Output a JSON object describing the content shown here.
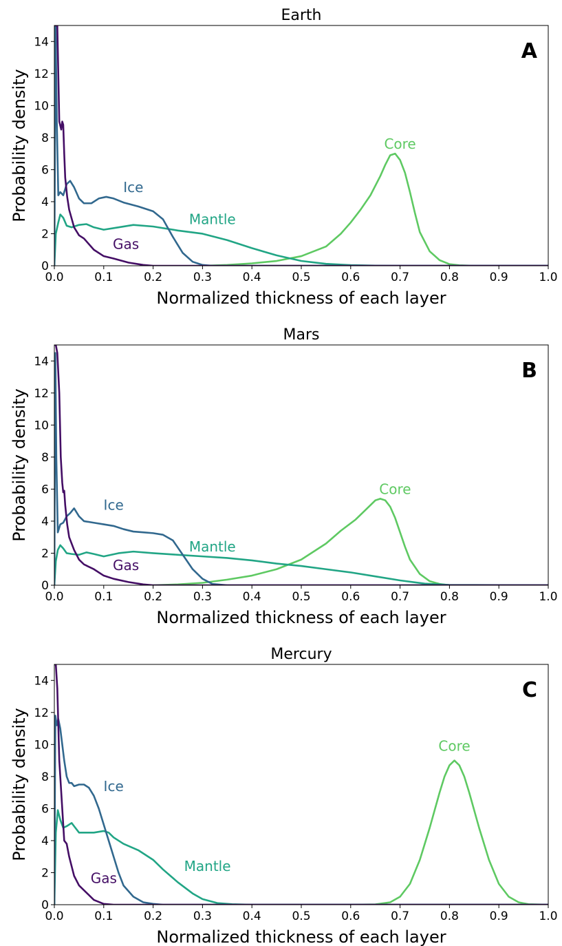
{
  "colors": {
    "core": "#5ec962",
    "mantle": "#21a585",
    "ice": "#31688e",
    "gas": "#440e65",
    "axis": "#000000"
  },
  "chart_data": [
    {
      "type": "line",
      "title": "Earth",
      "panel_label": "A",
      "xlabel": "Normalized thickness of each layer",
      "ylabel": "Probability density",
      "xlim": [
        0,
        1.0
      ],
      "ylim": [
        0,
        15
      ],
      "xticks": [
        "0.0",
        "0.1",
        "0.2",
        "0.3",
        "0.4",
        "0.5",
        "0.6",
        "0.7",
        "0.8",
        "0.9",
        "1.0"
      ],
      "yticks": [
        "0",
        "2",
        "4",
        "6",
        "8",
        "10",
        "12",
        "14"
      ],
      "grid": false,
      "legend": "none (inline curve labels)",
      "series": [
        {
          "name": "Core",
          "color_key": "core",
          "x": [
            0.3,
            0.35,
            0.4,
            0.45,
            0.5,
            0.55,
            0.58,
            0.6,
            0.62,
            0.64,
            0.66,
            0.67,
            0.68,
            0.69,
            0.7,
            0.71,
            0.72,
            0.73,
            0.74,
            0.76,
            0.78,
            0.8,
            0.82,
            0.85,
            1.0
          ],
          "y": [
            0,
            0.05,
            0.15,
            0.3,
            0.6,
            1.2,
            2.0,
            2.7,
            3.5,
            4.4,
            5.6,
            6.3,
            6.9,
            7.0,
            6.6,
            5.8,
            4.6,
            3.3,
            2.1,
            0.9,
            0.35,
            0.1,
            0.03,
            0,
            0
          ]
        },
        {
          "name": "Mantle",
          "color_key": "mantle",
          "x": [
            0,
            0.003,
            0.008,
            0.012,
            0.018,
            0.025,
            0.035,
            0.05,
            0.065,
            0.08,
            0.1,
            0.13,
            0.16,
            0.2,
            0.25,
            0.3,
            0.35,
            0.4,
            0.45,
            0.5,
            0.55,
            0.6,
            0.65,
            0.7,
            1.0
          ],
          "y": [
            0,
            2.0,
            2.7,
            3.2,
            3.0,
            2.5,
            2.4,
            2.55,
            2.6,
            2.4,
            2.25,
            2.4,
            2.55,
            2.45,
            2.2,
            2.0,
            1.6,
            1.1,
            0.65,
            0.3,
            0.12,
            0.04,
            0.01,
            0,
            0
          ]
        },
        {
          "name": "Ice",
          "color_key": "ice",
          "x": [
            0,
            0.0025,
            0.005,
            0.008,
            0.012,
            0.018,
            0.025,
            0.032,
            0.04,
            0.05,
            0.06,
            0.075,
            0.09,
            0.105,
            0.12,
            0.14,
            0.17,
            0.2,
            0.22,
            0.24,
            0.26,
            0.28,
            0.3,
            0.32,
            0.35,
            1.0
          ],
          "y": [
            0,
            15,
            9,
            4.4,
            4.6,
            4.4,
            5.1,
            5.3,
            4.9,
            4.2,
            3.9,
            3.9,
            4.2,
            4.3,
            4.2,
            3.95,
            3.7,
            3.4,
            2.9,
            1.8,
            0.8,
            0.25,
            0.05,
            0,
            0,
            0
          ]
        },
        {
          "name": "Gas",
          "color_key": "gas",
          "x": [
            0,
            0.003,
            0.006,
            0.01,
            0.014,
            0.016,
            0.018,
            0.02,
            0.022,
            0.026,
            0.03,
            0.04,
            0.05,
            0.06,
            0.08,
            0.1,
            0.12,
            0.15,
            0.18,
            0.2,
            1.0
          ],
          "y": [
            15,
            15,
            15,
            9,
            8.5,
            9.0,
            8.8,
            7,
            5.5,
            4.3,
            3.5,
            2.4,
            1.9,
            1.7,
            1.0,
            0.6,
            0.45,
            0.2,
            0.05,
            0,
            0
          ]
        }
      ],
      "annotations": [
        {
          "text": "Core",
          "x": 0.7,
          "y": 7.3,
          "color_key": "core"
        },
        {
          "text": "Ice",
          "x": 0.16,
          "y": 4.6,
          "color_key": "ice"
        },
        {
          "text": "Mantle",
          "x": 0.32,
          "y": 2.6,
          "color_key": "mantle"
        },
        {
          "text": "Gas",
          "x": 0.145,
          "y": 1.05,
          "color_key": "gas"
        }
      ]
    },
    {
      "type": "line",
      "title": "Mars",
      "panel_label": "B",
      "xlabel": "Normalized thickness of each layer",
      "ylabel": "Probability density",
      "xlim": [
        0,
        1.0
      ],
      "ylim": [
        0,
        15
      ],
      "xticks": [
        "0.0",
        "0.1",
        "0.2",
        "0.3",
        "0.4",
        "0.5",
        "0.6",
        "0.7",
        "0.8",
        "0.9",
        "1.0"
      ],
      "yticks": [
        "0",
        "2",
        "4",
        "6",
        "8",
        "10",
        "12",
        "14"
      ],
      "grid": false,
      "legend": "none (inline curve labels)",
      "series": [
        {
          "name": "Core",
          "color_key": "core",
          "x": [
            0.2,
            0.25,
            0.3,
            0.35,
            0.4,
            0.45,
            0.5,
            0.55,
            0.58,
            0.61,
            0.63,
            0.65,
            0.66,
            0.67,
            0.68,
            0.69,
            0.7,
            0.71,
            0.72,
            0.74,
            0.76,
            0.78,
            0.8,
            1.0
          ],
          "y": [
            0,
            0.05,
            0.15,
            0.35,
            0.6,
            1.0,
            1.6,
            2.6,
            3.4,
            4.1,
            4.7,
            5.3,
            5.4,
            5.3,
            4.9,
            4.2,
            3.3,
            2.4,
            1.6,
            0.7,
            0.25,
            0.08,
            0,
            0
          ]
        },
        {
          "name": "Mantle",
          "color_key": "mantle",
          "x": [
            0,
            0.003,
            0.007,
            0.012,
            0.018,
            0.025,
            0.035,
            0.05,
            0.065,
            0.08,
            0.1,
            0.13,
            0.16,
            0.2,
            0.25,
            0.3,
            0.35,
            0.4,
            0.45,
            0.5,
            0.55,
            0.6,
            0.65,
            0.7,
            0.75,
            0.8,
            1.0
          ],
          "y": [
            0,
            1.5,
            2.2,
            2.5,
            2.3,
            2.0,
            1.95,
            1.9,
            2.05,
            1.95,
            1.8,
            2.0,
            2.1,
            2.0,
            1.9,
            1.8,
            1.7,
            1.55,
            1.35,
            1.2,
            1.0,
            0.8,
            0.55,
            0.3,
            0.1,
            0.02,
            0
          ]
        },
        {
          "name": "Ice",
          "color_key": "ice",
          "x": [
            0,
            0.002,
            0.004,
            0.007,
            0.012,
            0.018,
            0.025,
            0.032,
            0.04,
            0.05,
            0.06,
            0.08,
            0.1,
            0.12,
            0.14,
            0.16,
            0.18,
            0.2,
            0.22,
            0.24,
            0.26,
            0.28,
            0.3,
            0.32,
            0.35,
            1.0
          ],
          "y": [
            0,
            14.5,
            8,
            3.3,
            3.8,
            3.9,
            4.3,
            4.5,
            4.8,
            4.3,
            4.0,
            3.9,
            3.8,
            3.7,
            3.5,
            3.35,
            3.3,
            3.25,
            3.15,
            2.8,
            1.9,
            1.0,
            0.4,
            0.08,
            0,
            0
          ]
        },
        {
          "name": "Gas",
          "color_key": "gas",
          "x": [
            0,
            0.003,
            0.006,
            0.01,
            0.013,
            0.016,
            0.018,
            0.02,
            0.022,
            0.026,
            0.03,
            0.04,
            0.05,
            0.06,
            0.08,
            0.1,
            0.12,
            0.15,
            0.18,
            0.2,
            1.0
          ],
          "y": [
            15,
            15,
            14.5,
            12,
            8,
            6.4,
            5.8,
            5.9,
            5.0,
            3.8,
            3.0,
            2.2,
            1.6,
            1.3,
            1.0,
            0.6,
            0.4,
            0.2,
            0.05,
            0,
            0
          ]
        }
      ],
      "annotations": [
        {
          "text": "Core",
          "x": 0.69,
          "y": 5.7,
          "color_key": "core"
        },
        {
          "text": "Ice",
          "x": 0.12,
          "y": 4.7,
          "color_key": "ice"
        },
        {
          "text": "Mantle",
          "x": 0.32,
          "y": 2.1,
          "color_key": "mantle"
        },
        {
          "text": "Gas",
          "x": 0.145,
          "y": 0.95,
          "color_key": "gas"
        }
      ]
    },
    {
      "type": "line",
      "title": "Mercury",
      "panel_label": "C",
      "xlabel": "Normalized thickness of each layer",
      "ylabel": "Probability density",
      "xlim": [
        0,
        1.0
      ],
      "ylim": [
        0,
        15
      ],
      "xticks": [
        "0.0",
        "0.1",
        "0.2",
        "0.3",
        "0.4",
        "0.5",
        "0.6",
        "0.7",
        "0.8",
        "0.9",
        "1.0"
      ],
      "yticks": [
        "0",
        "2",
        "4",
        "6",
        "8",
        "10",
        "12",
        "14"
      ],
      "grid": false,
      "legend": "none (inline curve labels)",
      "series": [
        {
          "name": "Core",
          "color_key": "core",
          "x": [
            0.6,
            0.65,
            0.68,
            0.7,
            0.72,
            0.74,
            0.76,
            0.78,
            0.79,
            0.8,
            0.81,
            0.82,
            0.83,
            0.84,
            0.86,
            0.88,
            0.9,
            0.92,
            0.94,
            0.96,
            1.0
          ],
          "y": [
            0,
            0.02,
            0.15,
            0.5,
            1.3,
            2.8,
            4.8,
            7.0,
            8.0,
            8.7,
            9.0,
            8.7,
            8.0,
            7.0,
            4.8,
            2.8,
            1.3,
            0.5,
            0.15,
            0.03,
            0
          ]
        },
        {
          "name": "Mantle",
          "color_key": "mantle",
          "x": [
            0,
            0.003,
            0.007,
            0.012,
            0.018,
            0.025,
            0.035,
            0.04,
            0.05,
            0.06,
            0.08,
            0.1,
            0.11,
            0.12,
            0.14,
            0.17,
            0.2,
            0.22,
            0.25,
            0.28,
            0.3,
            0.33,
            0.36,
            0.4,
            1.0
          ],
          "y": [
            0,
            4.5,
            5.9,
            5.3,
            4.8,
            4.9,
            5.1,
            4.9,
            4.5,
            4.5,
            4.5,
            4.6,
            4.5,
            4.2,
            3.8,
            3.4,
            2.8,
            2.2,
            1.4,
            0.7,
            0.35,
            0.1,
            0.03,
            0,
            0
          ]
        },
        {
          "name": "Ice",
          "color_key": "ice",
          "x": [
            0,
            0.002,
            0.005,
            0.008,
            0.012,
            0.016,
            0.02,
            0.025,
            0.03,
            0.035,
            0.04,
            0.05,
            0.06,
            0.07,
            0.08,
            0.09,
            0.1,
            0.11,
            0.12,
            0.13,
            0.14,
            0.16,
            0.18,
            0.2,
            0.22,
            0.25,
            1.0
          ],
          "y": [
            0,
            11.8,
            11.2,
            11.6,
            11.0,
            10.0,
            9.0,
            8.0,
            7.6,
            7.6,
            7.4,
            7.5,
            7.5,
            7.3,
            6.8,
            6.0,
            5.0,
            4.0,
            3.0,
            2.0,
            1.2,
            0.5,
            0.15,
            0.05,
            0,
            0,
            0
          ]
        },
        {
          "name": "Gas",
          "color_key": "gas",
          "x": [
            0,
            0.003,
            0.006,
            0.01,
            0.015,
            0.02,
            0.025,
            0.03,
            0.04,
            0.05,
            0.06,
            0.08,
            0.1,
            0.12,
            1.0
          ],
          "y": [
            15,
            15,
            13.5,
            9.0,
            6.5,
            4.0,
            3.8,
            3.0,
            1.8,
            1.2,
            0.9,
            0.3,
            0.05,
            0,
            0
          ]
        }
      ],
      "annotations": [
        {
          "text": "Core",
          "x": 0.81,
          "y": 9.6,
          "color_key": "core"
        },
        {
          "text": "Ice",
          "x": 0.12,
          "y": 7.1,
          "color_key": "ice"
        },
        {
          "text": "Mantle",
          "x": 0.31,
          "y": 2.1,
          "color_key": "mantle"
        },
        {
          "text": "Gas",
          "x": 0.1,
          "y": 1.35,
          "color_key": "gas"
        }
      ]
    }
  ]
}
